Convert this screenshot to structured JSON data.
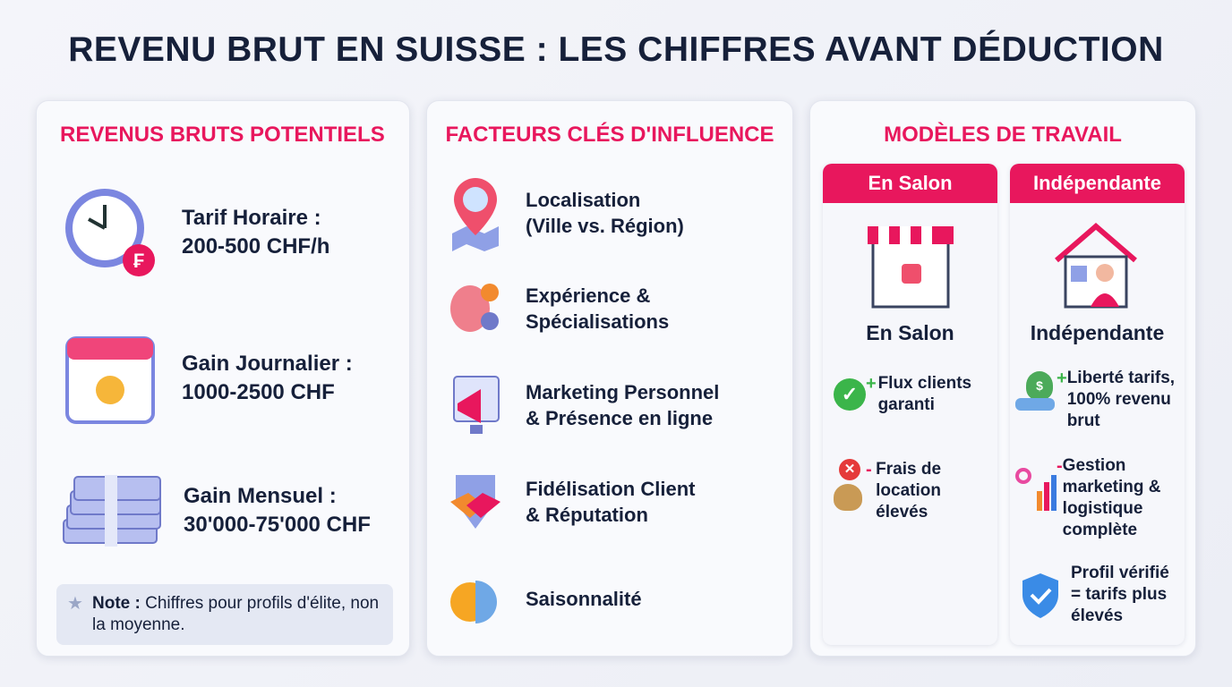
{
  "title": "REVENU BRUT EN SUISSE : LES CHIFFRES AVANT DÉDUCTION",
  "colors": {
    "accent": "#e8175d",
    "text": "#16203a"
  },
  "revenus": {
    "heading": "REVENUS BRUTS POTENTIELS",
    "items": [
      {
        "icon": "clock-franc-icon",
        "line1": "Tarif Horaire :",
        "line2": "200-500 CHF/h"
      },
      {
        "icon": "calendar-sun-icon",
        "line1": "Gain Journalier :",
        "line2": "1000-2500 CHF"
      },
      {
        "icon": "banknotes-stack-icon",
        "line1": "Gain Mensuel :",
        "line2": "30'000-75'000 CHF"
      }
    ],
    "note_label": "Note :",
    "note_text": " Chiffres pour profils d'élite, non la moyenne."
  },
  "facteurs": {
    "heading": "FACTEURS CLÉS D'INFLUENCE",
    "items": [
      {
        "icon": "map-pin-city-icon",
        "line1": "Localisation",
        "line2": "(Ville vs. Région)"
      },
      {
        "icon": "brain-gear-icon",
        "line1": "Expérience &",
        "line2": "Spécialisations"
      },
      {
        "icon": "megaphone-icon",
        "line1": "Marketing Personnel",
        "line2": "& Présence en ligne"
      },
      {
        "icon": "handshake-icon",
        "line1": "Fidélisation Client",
        "line2": "& Réputation"
      },
      {
        "icon": "sun-snowflake-icon",
        "line1": "Saisonnalité",
        "line2": ""
      }
    ]
  },
  "modeles": {
    "heading": "MODÈLES DE TRAVAIL",
    "salon": {
      "header": "En Salon",
      "label": "En Salon",
      "icon": "storefront-icon",
      "points": [
        {
          "sign": "+",
          "icon": "check-circle-icon",
          "text": "Flux clients garanti"
        },
        {
          "sign": "-",
          "icon": "x-circle-money-bag-icon",
          "text": "Frais de location élevés"
        }
      ]
    },
    "independante": {
      "header": "Indépendante",
      "label": "Indépendante",
      "icon": "house-person-icon",
      "points": [
        {
          "sign": "+",
          "icon": "hand-money-bag-icon",
          "text": "Liberté tarifs, 100% revenu brut"
        },
        {
          "sign": "-",
          "icon": "gears-chart-icon",
          "text": "Gestion marketing & logistique complète"
        },
        {
          "sign": "",
          "icon": "shield-check-icon",
          "text": "Profil vérifié = tarifs plus élevés"
        }
      ]
    }
  }
}
